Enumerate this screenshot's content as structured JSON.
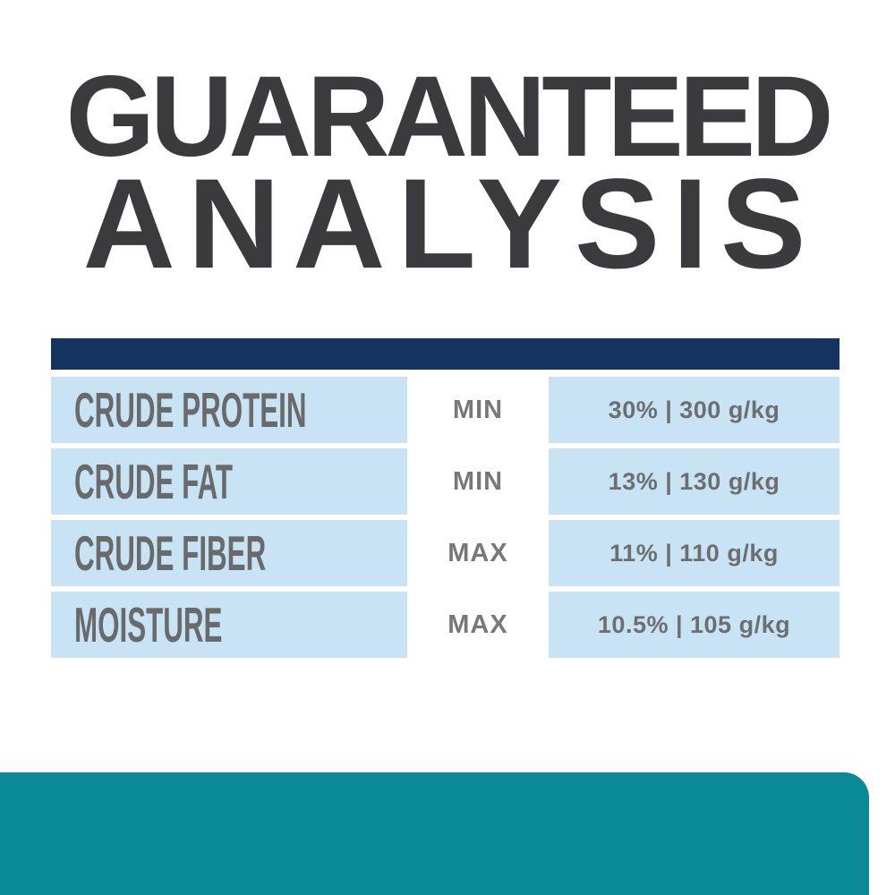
{
  "title": {
    "line1": "GUARANTEED",
    "line2": "ANALYSIS"
  },
  "table": {
    "rows": [
      {
        "label": "CRUDE PROTEIN",
        "qualifier": "MIN",
        "value": "30% | 300 g/kg"
      },
      {
        "label": "CRUDE FAT",
        "qualifier": "MIN",
        "value": "13% | 130 g/kg"
      },
      {
        "label": "CRUDE FIBER",
        "qualifier": "MAX",
        "value": "11% | 110 g/kg"
      },
      {
        "label": "MOISTURE",
        "qualifier": "MAX",
        "value": "10.5% | 105 g/kg"
      }
    ]
  },
  "colors": {
    "heading": "#3b3b3d",
    "navy_bar": "#15335f",
    "cell_blue": "#c8e3f4",
    "text_gray": "#6d6e71",
    "label_gray": "#696a6c",
    "teal_footer": "#0a8a96"
  }
}
